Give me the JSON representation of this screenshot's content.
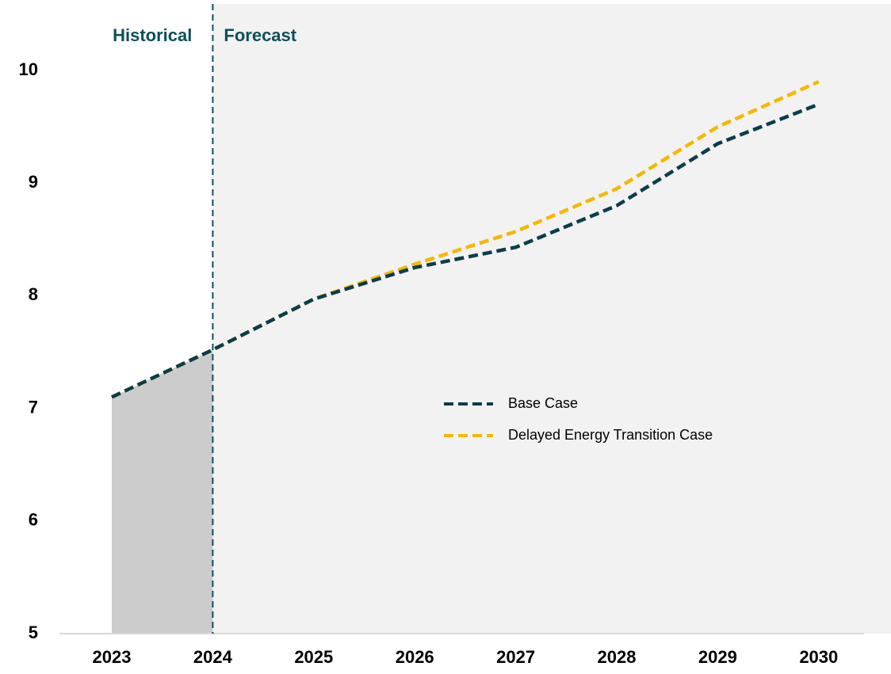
{
  "chart_data": {
    "type": "line",
    "annotations": [
      "Historical",
      "Forecast"
    ],
    "categories": [
      "2023",
      "2024",
      "2025",
      "2026",
      "2027",
      "2028",
      "2029",
      "2030"
    ],
    "series": [
      {
        "name": "Base Case",
        "color": "#0b3d4a",
        "values": [
          7.1,
          7.52,
          7.97,
          8.25,
          8.43,
          8.8,
          9.35,
          9.7
        ]
      },
      {
        "name": "Delayed Energy Transition Case",
        "color": "#f5b800",
        "values": [
          7.1,
          7.52,
          7.97,
          8.28,
          8.57,
          8.95,
          9.5,
          9.9
        ]
      }
    ],
    "ylim": [
      5,
      10
    ],
    "yticks": [
      5,
      6,
      7,
      8,
      9,
      10
    ],
    "grid": false,
    "legend": "center"
  }
}
